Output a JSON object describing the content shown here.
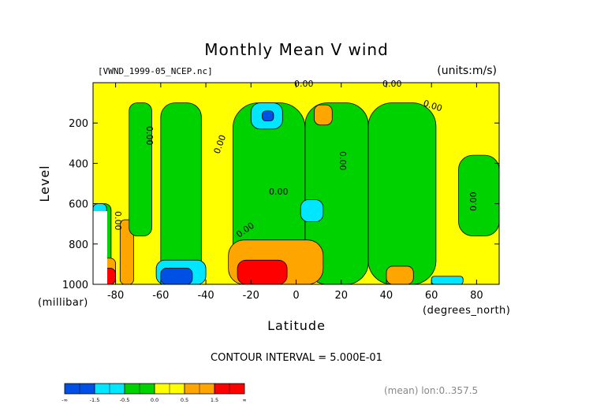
{
  "chart_data": {
    "type": "heatmap",
    "title": "Monthly Mean V wind",
    "file_label": "[VWND_1999-05_NCEP.nc]",
    "units_label": "(units:m/s)",
    "xlabel": "Latitude",
    "ylabel": "Level",
    "y_unit_label": "(millibar)",
    "x_unit_label": "(degrees_north)",
    "x_range": [
      -90,
      90
    ],
    "y_range": [
      1000,
      0
    ],
    "x_ticks": [
      "-80",
      "-60",
      "-40",
      "-20",
      "0",
      "20",
      "40",
      "60",
      "80"
    ],
    "y_ticks": [
      "200",
      "400",
      "600",
      "800",
      "1000"
    ],
    "contour_interval_text": "CONTOUR INTERVAL = 5.000E-01",
    "contour_label": "0.00",
    "footer": "(mean) lon:0..357.5",
    "colorbar": {
      "colors": [
        "#0050e6",
        "#00e6ff",
        "#00d200",
        "#ffff00",
        "#ffa500",
        "#ff0000"
      ],
      "tick_labels": [
        "-∞",
        "-1.5",
        "-0.5",
        "0.0",
        "0.5",
        "1.5",
        "∞"
      ]
    },
    "regions": [
      {
        "level": "green",
        "x": [
          -90,
          -82
        ],
        "y": [
          600,
          1000
        ]
      },
      {
        "level": "cyan",
        "x": [
          -90,
          -84
        ],
        "y": [
          600,
          700
        ]
      },
      {
        "level": "orange",
        "x": [
          -78,
          -72
        ],
        "y": [
          680,
          1000
        ]
      },
      {
        "level": "orange",
        "x": [
          -87,
          -80
        ],
        "y": [
          870,
          1000
        ]
      },
      {
        "level": "red",
        "x": [
          -87,
          -80
        ],
        "y": [
          920,
          1000
        ]
      },
      {
        "level": "green",
        "x": [
          -74,
          -64
        ],
        "y": [
          100,
          760
        ]
      },
      {
        "level": "green",
        "x": [
          -60,
          -42
        ],
        "y": [
          100,
          1000
        ]
      },
      {
        "level": "green",
        "x": [
          -28,
          4
        ],
        "y": [
          100,
          1000
        ]
      },
      {
        "level": "green",
        "x": [
          4,
          32
        ],
        "y": [
          100,
          1000
        ]
      },
      {
        "level": "green",
        "x": [
          32,
          62
        ],
        "y": [
          100,
          1000
        ]
      },
      {
        "level": "green",
        "x": [
          72,
          90
        ],
        "y": [
          360,
          760
        ]
      },
      {
        "level": "cyan",
        "x": [
          -20,
          -6
        ],
        "y": [
          100,
          230
        ]
      },
      {
        "level": "blue",
        "x": [
          -15,
          -10
        ],
        "y": [
          140,
          190
        ]
      },
      {
        "level": "orange",
        "x": [
          8,
          16
        ],
        "y": [
          110,
          210
        ]
      },
      {
        "level": "cyan",
        "x": [
          2,
          12
        ],
        "y": [
          580,
          690
        ]
      },
      {
        "level": "cyan",
        "x": [
          -62,
          -40
        ],
        "y": [
          880,
          1000
        ]
      },
      {
        "level": "blue",
        "x": [
          -60,
          -46
        ],
        "y": [
          920,
          1000
        ]
      },
      {
        "level": "orange",
        "x": [
          -30,
          12
        ],
        "y": [
          780,
          1000
        ]
      },
      {
        "level": "red",
        "x": [
          -26,
          -4
        ],
        "y": [
          880,
          1000
        ]
      },
      {
        "level": "orange",
        "x": [
          40,
          52
        ],
        "y": [
          910,
          1000
        ]
      },
      {
        "level": "cyan",
        "x": [
          60,
          74
        ],
        "y": [
          960,
          1000
        ]
      }
    ]
  }
}
